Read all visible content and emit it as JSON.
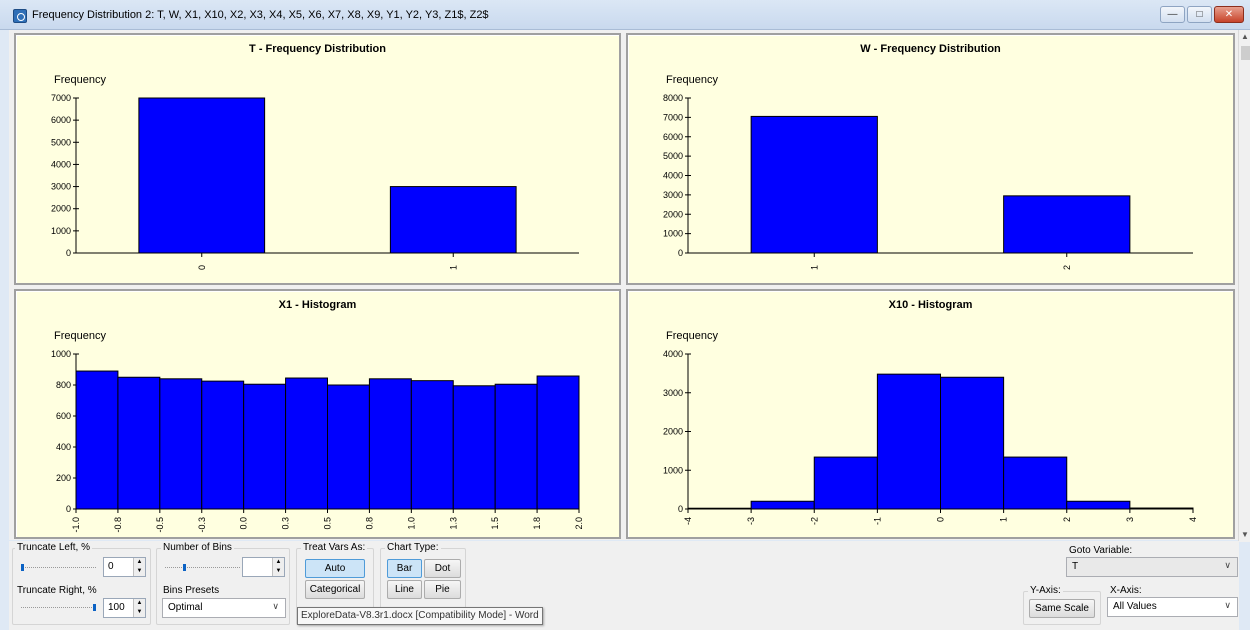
{
  "window": {
    "title": "Frequency Distribution 2: T, W, X1, X10, X2, X3, X4, X5, X6, X7, X8, X9, Y1, Y2, Y3, Z1$, Z2$",
    "minimize_icon": "minimize-icon",
    "maximize_icon": "maximize-icon",
    "close_icon": "close-icon"
  },
  "colors": {
    "bar_fill": "#0000ff",
    "panel_bg": "#ffffe0",
    "button_active": "#cce4f7"
  },
  "chart_data": [
    {
      "type": "bar",
      "title": "T - Frequency Distribution",
      "ylabel": "Frequency",
      "categories": [
        "0",
        "1"
      ],
      "values": [
        7000,
        3000
      ],
      "ylim": [
        0,
        7000
      ],
      "yticks": [
        "0",
        "1000",
        "2000",
        "3000",
        "4000",
        "5000",
        "6000",
        "7000"
      ]
    },
    {
      "type": "bar",
      "title": "W - Frequency Distribution",
      "ylabel": "Frequency",
      "categories": [
        "1",
        "2"
      ],
      "values": [
        7050,
        2950
      ],
      "ylim": [
        0,
        8000
      ],
      "yticks": [
        "0",
        "1000",
        "2000",
        "3000",
        "4000",
        "5000",
        "6000",
        "7000",
        "8000"
      ]
    },
    {
      "type": "bar",
      "title": "X1 - Histogram",
      "ylabel": "Frequency",
      "histogram": true,
      "xticks": [
        "-1.0",
        "-0.8",
        "-0.5",
        "-0.3",
        "0.0",
        "0.3",
        "0.5",
        "0.8",
        "1.0",
        "1.3",
        "1.5",
        "1.8",
        "2.0"
      ],
      "values": [
        890,
        850,
        840,
        825,
        805,
        845,
        800,
        840,
        828,
        795,
        805,
        858
      ],
      "ylim": [
        0,
        1000
      ],
      "yticks": [
        "0",
        "200",
        "400",
        "600",
        "800",
        "1000"
      ]
    },
    {
      "type": "bar",
      "title": "X10 - Histogram",
      "ylabel": "Frequency",
      "histogram": true,
      "xticks": [
        "-4",
        "-3",
        "-2",
        "-1",
        "0",
        "1",
        "2",
        "3",
        "4"
      ],
      "values": [
        20,
        200,
        1340,
        3480,
        3400,
        1340,
        200,
        25
      ],
      "ylim": [
        0,
        4000
      ],
      "yticks": [
        "0",
        "1000",
        "2000",
        "3000",
        "4000"
      ]
    }
  ],
  "controls": {
    "truncate_left": {
      "label": "Truncate  Left, %",
      "value": "0",
      "level": 0
    },
    "truncate_right": {
      "label": "Truncate Right, %",
      "value": "100",
      "level": 1
    },
    "number_of_bins": {
      "label": "Number of Bins",
      "value": "",
      "level": 0.2
    },
    "bins_presets": {
      "label": "Bins Presets",
      "value": "Optimal"
    },
    "treat_vars": {
      "label": "Treat Vars As:",
      "auto": "Auto",
      "categorical": "Categorical"
    },
    "chart_type": {
      "label": "Chart Type:",
      "bar": "Bar",
      "dot": "Dot",
      "line": "Line",
      "pie": "Pie"
    },
    "goto_variable": {
      "label": "Goto Variable:",
      "value": "T"
    },
    "y_axis": {
      "label": "Y-Axis:",
      "button": "Same Scale"
    },
    "x_axis": {
      "label": "X-Axis:",
      "value": "All Values"
    }
  },
  "tooltip": "ExploreData-V8.3r1.docx [Compatibility Mode] - Word"
}
